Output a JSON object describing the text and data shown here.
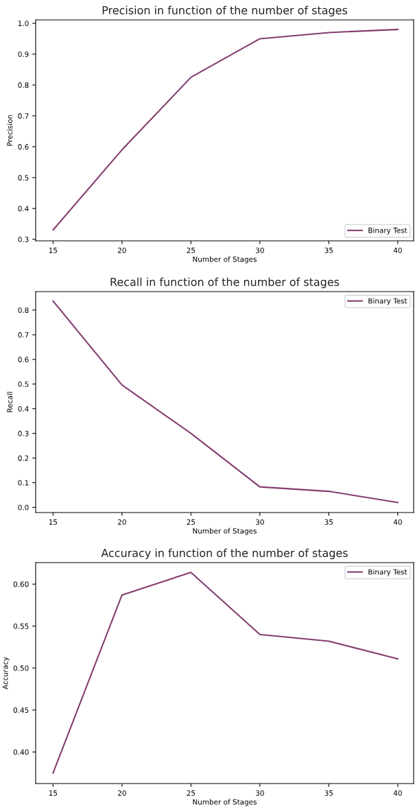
{
  "chart_data": [
    {
      "type": "line",
      "title": "Precision in function of the number of stages",
      "xlabel": "Number of Stages",
      "ylabel": "Precision",
      "x": [
        15,
        20,
        25,
        30,
        35,
        40
      ],
      "series": [
        {
          "name": "Binary Test",
          "color": "#833c6e",
          "values": [
            0.33,
            0.59,
            0.825,
            0.95,
            0.97,
            0.98
          ]
        }
      ],
      "xlim": [
        13.74,
        41.15
      ],
      "xticks": [
        15,
        20,
        25,
        30,
        35,
        40
      ],
      "ylim": [
        0.295,
        1.011
      ],
      "yticks": [
        0.3,
        0.4,
        0.5,
        0.6,
        0.7,
        0.8,
        0.9,
        {
          "value": 1.0,
          "label": "1.0"
        }
      ],
      "legend": "lower right",
      "grid": false
    },
    {
      "type": "line",
      "title": "Recall in function of the number of stages",
      "xlabel": "Number of Stages",
      "ylabel": "Recall",
      "x": [
        15,
        20,
        25,
        30,
        35,
        40
      ],
      "series": [
        {
          "name": "Binary Test",
          "color": "#833c6e",
          "values": [
            0.837,
            0.496,
            0.3,
            0.083,
            0.065,
            0.02
          ]
        }
      ],
      "xlim": [
        13.74,
        41.15
      ],
      "xticks": [
        15,
        20,
        25,
        30,
        35,
        40
      ],
      "ylim": [
        -0.021,
        0.875
      ],
      "yticks": [
        {
          "value": 0.0,
          "label": "0.0"
        },
        0.1,
        0.2,
        0.3,
        0.4,
        0.5,
        0.6,
        0.7,
        0.8
      ],
      "legend": "upper right",
      "grid": false
    },
    {
      "type": "line",
      "title": "Accuracy in function of the number of stages",
      "xlabel": "Number of Stages",
      "ylabel": "Accuracy",
      "x": [
        15,
        20,
        25,
        30,
        35,
        40
      ],
      "series": [
        {
          "name": "Binary Test",
          "color": "#833c6e",
          "values": [
            0.375,
            0.587,
            0.614,
            0.54,
            0.532,
            0.511
          ]
        }
      ],
      "xlim": [
        13.74,
        41.15
      ],
      "xticks": [
        15,
        20,
        25,
        30,
        35,
        40
      ],
      "ylim": [
        0.3624,
        0.6256
      ],
      "yticks": [
        {
          "value": 0.4,
          "label": "0.40"
        },
        {
          "value": 0.45,
          "label": "0.45"
        },
        {
          "value": 0.5,
          "label": "0.50"
        },
        {
          "value": 0.55,
          "label": "0.55"
        },
        {
          "value": 0.6,
          "label": "0.60"
        }
      ],
      "legend": "upper right",
      "grid": false
    }
  ]
}
